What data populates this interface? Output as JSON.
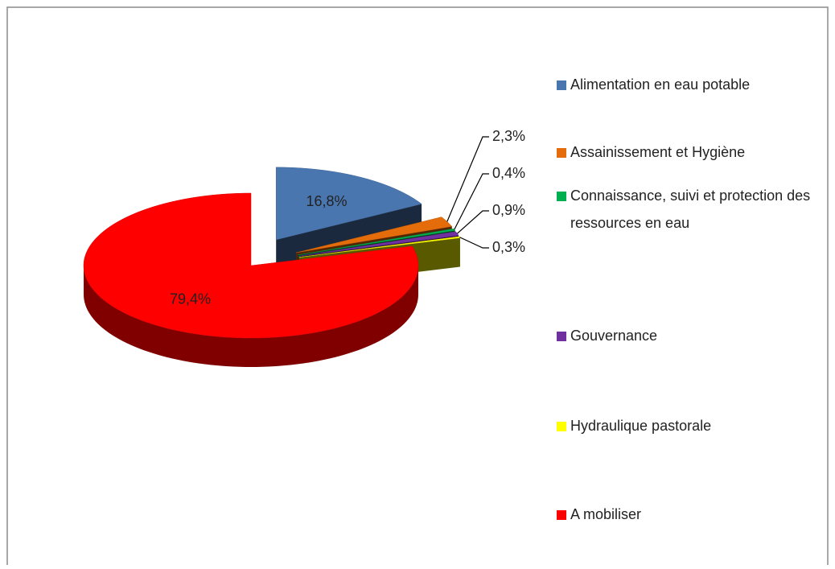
{
  "chart_data": {
    "type": "pie",
    "categories": [
      "Alimentation en eau potable",
      "Assainissement et Hygiène",
      "Connaissance, suivi et protection des ressources en eau",
      "Gouvernance",
      "Hydraulique pastorale",
      "A mobiliser"
    ],
    "values": [
      16.8,
      2.3,
      0.4,
      0.9,
      0.3,
      79.4
    ],
    "value_labels": [
      "16,8%",
      "2,3%",
      "0,4%",
      "0,9%",
      "0,3%",
      "79,4%"
    ],
    "colors": [
      "#4a76b0",
      "#e46c0a",
      "#00b050",
      "#7030a0",
      "#ffff00",
      "#ff0000"
    ],
    "legend": "right"
  }
}
